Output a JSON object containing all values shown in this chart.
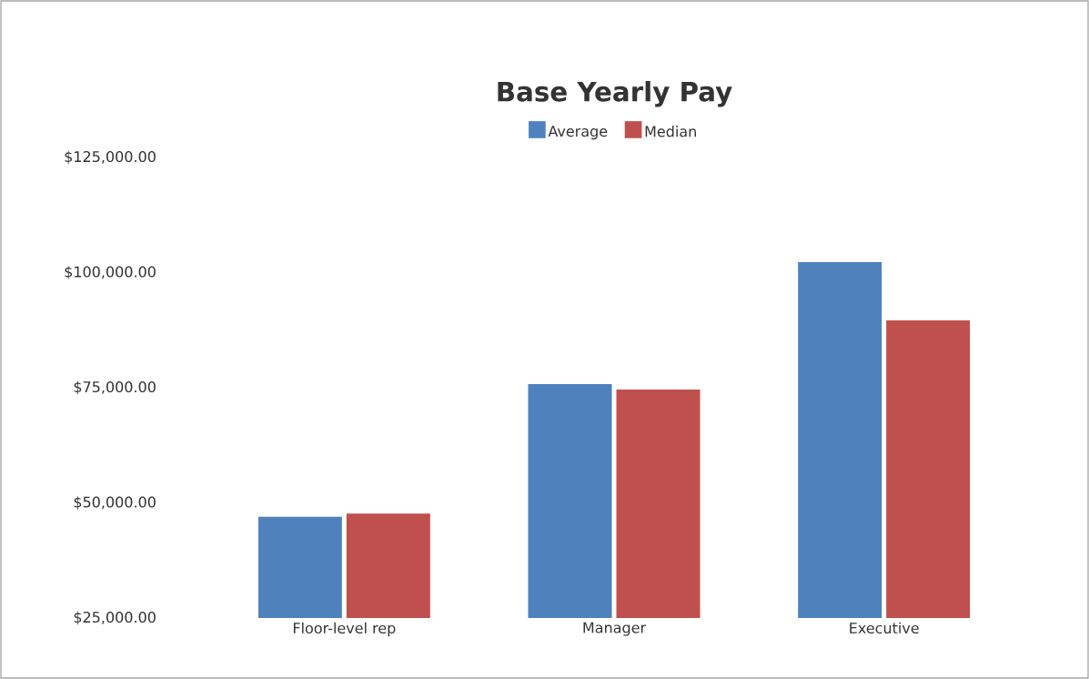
{
  "chart_data": {
    "type": "bar",
    "title": "Base Yearly Pay",
    "categories": [
      "Floor-level rep",
      "Manager",
      "Executive"
    ],
    "series": [
      {
        "name": "Average",
        "color": "#4f81bd",
        "values": [
          47000,
          75800,
          102300
        ]
      },
      {
        "name": "Median",
        "color": "#c0504d",
        "values": [
          47700,
          74600,
          89600
        ]
      }
    ],
    "ylim": [
      25000,
      125000
    ],
    "yticks": [
      {
        "value": 25000,
        "label": "$25,000.00"
      },
      {
        "value": 50000,
        "label": "$50,000.00"
      },
      {
        "value": 75000,
        "label": "$75,000.00"
      },
      {
        "value": 100000,
        "label": "$100,000.00"
      },
      {
        "value": 125000,
        "label": "$125,000.00"
      }
    ],
    "legend": "top"
  }
}
